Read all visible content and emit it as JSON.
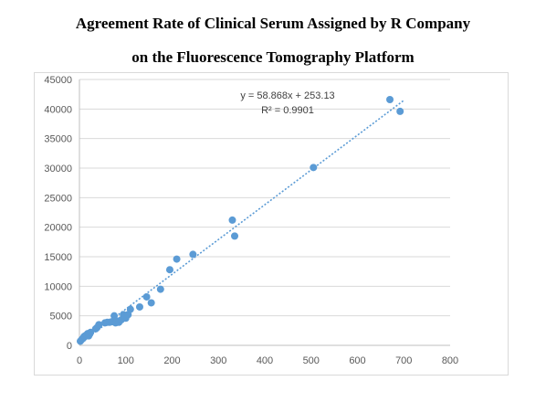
{
  "title_line1": "Agreement Rate of Clinical Serum Assigned by R Company",
  "title_line2": "on the Fluorescence Tomography Platform",
  "chart_data": {
    "type": "scatter",
    "title": "Agreement Rate of Clinical Serum Assigned by R Company on the Fluorescence Tomography Platform",
    "xlabel": "",
    "ylabel": "",
    "xlim": [
      0,
      800
    ],
    "ylim": [
      0,
      45000
    ],
    "xticks": [
      0,
      100,
      200,
      300,
      400,
      500,
      600,
      700,
      800
    ],
    "yticks": [
      0,
      5000,
      10000,
      15000,
      20000,
      25000,
      30000,
      35000,
      40000,
      45000
    ],
    "grid": "horizontal",
    "marker_color": "#5b9bd5",
    "trendline": {
      "type": "linear",
      "slope": 58.868,
      "intercept": 253.13,
      "r2": 0.9901,
      "equation_label": "y = 58.868x + 253.13",
      "r2_label": "R² = 0.9901",
      "color": "#5b9bd5",
      "style": "dotted",
      "x_range": [
        2,
        700
      ]
    },
    "x": [
      2,
      5,
      8,
      10,
      12,
      14,
      16,
      18,
      20,
      22,
      24,
      35,
      38,
      42,
      55,
      60,
      65,
      70,
      75,
      78,
      80,
      82,
      85,
      90,
      95,
      100,
      105,
      110,
      130,
      145,
      155,
      175,
      195,
      210,
      245,
      330,
      335,
      505,
      670,
      692
    ],
    "y": [
      700,
      1000,
      1200,
      1500,
      1500,
      1700,
      1800,
      2000,
      1600,
      1900,
      2200,
      2800,
      3000,
      3500,
      3800,
      3900,
      3900,
      4000,
      5000,
      3800,
      3900,
      4100,
      3900,
      4300,
      5200,
      4600,
      5200,
      6100,
      6500,
      8200,
      7200,
      9500,
      12800,
      14600,
      15400,
      21200,
      18500,
      30100,
      41600,
      39600
    ]
  }
}
